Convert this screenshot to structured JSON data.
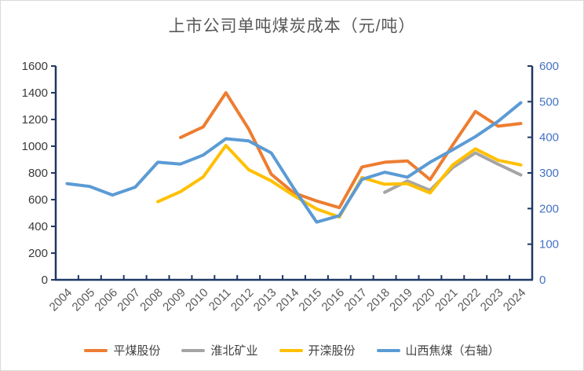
{
  "chart_data": {
    "type": "line",
    "title": "上市公司单吨煤炭成本（元/吨）",
    "categories": [
      "2004",
      "2005",
      "2006",
      "2007",
      "2008",
      "2009",
      "2010",
      "2011",
      "2012",
      "2013",
      "2014",
      "2015",
      "2016",
      "2017",
      "2018",
      "2019",
      "2020",
      "2021",
      "2022",
      "2023",
      "2024"
    ],
    "left_axis": {
      "min": 0,
      "max": 1600,
      "step": 200,
      "label_color": "#3a3a3a"
    },
    "right_axis": {
      "min": 0,
      "max": 600,
      "step": 100,
      "label_color": "#4472c4"
    },
    "axis_line_color": "#1f3864",
    "x_label_color": "#595959",
    "grid": false,
    "legend_position": "bottom",
    "series": [
      {
        "name": "平煤股份",
        "color": "#ed7d31",
        "axis": "left",
        "values": [
          null,
          null,
          null,
          null,
          null,
          1065,
          1145,
          1400,
          1130,
          790,
          650,
          590,
          540,
          845,
          880,
          890,
          750,
          1010,
          1260,
          1150,
          1170
        ]
      },
      {
        "name": "淮北矿业",
        "color": "#a5a5a5",
        "axis": "left",
        "values": [
          null,
          null,
          null,
          null,
          null,
          null,
          null,
          null,
          null,
          null,
          null,
          null,
          null,
          null,
          655,
          740,
          670,
          840,
          950,
          865,
          785
        ]
      },
      {
        "name": "开滦股份",
        "color": "#ffc000",
        "axis": "left",
        "values": [
          null,
          null,
          null,
          null,
          585,
          660,
          770,
          1005,
          825,
          740,
          630,
          530,
          470,
          765,
          715,
          720,
          650,
          860,
          980,
          895,
          860
        ]
      },
      {
        "name": "山西焦煤（右轴）",
        "color": "#5b9bd5",
        "axis": "right",
        "values": [
          270,
          262,
          238,
          260,
          330,
          325,
          350,
          396,
          390,
          356,
          256,
          162,
          180,
          282,
          302,
          288,
          330,
          365,
          402,
          445,
          497
        ]
      }
    ]
  }
}
